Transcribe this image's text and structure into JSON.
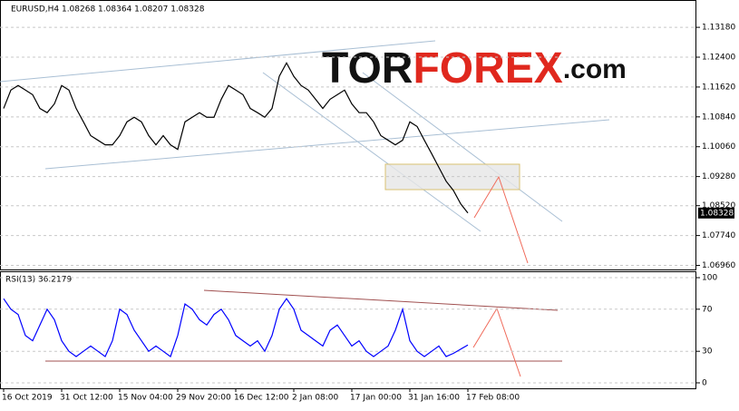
{
  "header": "EURUSD,H4  1.08268 1.08364 1.08207 1.08328",
  "logo": {
    "part1": "TOR",
    "part2": "FOREX",
    "part3": ".com"
  },
  "chart_data": [
    {
      "type": "line",
      "grid": true,
      "categories": [
        "16 Oct 2019",
        null,
        null,
        null,
        null,
        null,
        null,
        null,
        "31 Oct 12:00",
        null,
        null,
        null,
        null,
        null,
        null,
        null,
        "15 Nov 04:00",
        null,
        null,
        null,
        null,
        null,
        null,
        null,
        "29 Nov 20:00",
        null,
        null,
        null,
        null,
        null,
        null,
        null,
        "16 Dec 12:00",
        null,
        null,
        null,
        null,
        null,
        null,
        null,
        "2 Jan 08:00",
        null,
        null,
        null,
        null,
        null,
        null,
        null,
        "17 Jan 00:00",
        null,
        null,
        null,
        null,
        null,
        null,
        null,
        "31 Jan 16:00",
        null,
        null,
        null,
        null,
        null,
        null,
        null,
        "17 Feb 08:00"
      ],
      "series": [
        {
          "name": "EURUSD",
          "color": "#000000",
          "values": [
            1.1106,
            1.1154,
            1.1166,
            1.1154,
            1.1142,
            1.1106,
            1.1095,
            1.1118,
            1.1166,
            1.1154,
            1.1106,
            1.1071,
            1.1035,
            1.1023,
            1.1011,
            1.1011,
            1.1035,
            1.1071,
            1.1083,
            1.1071,
            1.1035,
            1.1011,
            1.1035,
            1.1011,
            1.0999,
            1.1071,
            1.1083,
            1.1095,
            1.1083,
            1.1083,
            1.113,
            1.1166,
            1.1154,
            1.1142,
            1.1106,
            1.1095,
            1.1083,
            1.1106,
            1.119,
            1.1225,
            1.119,
            1.1166,
            1.1154,
            1.113,
            1.1106,
            1.113,
            1.1142,
            1.1154,
            1.1118,
            1.1095,
            1.1095,
            1.1071,
            1.1035,
            1.1023,
            1.1011,
            1.1023,
            1.1071,
            1.1059,
            1.1023,
            1.0988,
            1.0952,
            1.0916,
            1.0892,
            1.0857,
            1.08328
          ]
        }
      ],
      "ylim": [
        1.0683,
        1.1387
      ],
      "yticks": [
        {
          "value": 1.1318,
          "label": "1.13180"
        },
        {
          "value": 1.124,
          "label": "1.12400"
        },
        {
          "value": 1.1162,
          "label": "1.11620"
        },
        {
          "value": 1.1084,
          "label": "1.10840"
        },
        {
          "value": 1.1006,
          "label": "1.10060"
        },
        {
          "value": 1.0928,
          "label": "1.09280"
        },
        {
          "value": 1.0852,
          "label": "1.08520"
        },
        {
          "value": 1.0774,
          "label": "1.07740"
        },
        {
          "value": 1.0696,
          "label": "1.06960"
        }
      ]
    },
    {
      "type": "line",
      "title": "RSI(13) 36.2179",
      "grid": true,
      "series": [
        {
          "name": "RSI(13)",
          "color": "#0000ff",
          "values": [
            80,
            70,
            65,
            45,
            40,
            55,
            70,
            60,
            40,
            30,
            25,
            30,
            35,
            30,
            25,
            40,
            70,
            65,
            50,
            40,
            30,
            35,
            30,
            25,
            45,
            75,
            70,
            60,
            55,
            65,
            70,
            60,
            45,
            40,
            35,
            40,
            30,
            45,
            70,
            80,
            70,
            50,
            45,
            40,
            35,
            50,
            55,
            45,
            35,
            40,
            30,
            25,
            30,
            35,
            50,
            70,
            40,
            30,
            25,
            30,
            35,
            25,
            28,
            32,
            36
          ]
        }
      ],
      "ylim": [
        -5.2,
        105.2
      ],
      "yticks": [
        100,
        70,
        30,
        0
      ]
    }
  ]
}
